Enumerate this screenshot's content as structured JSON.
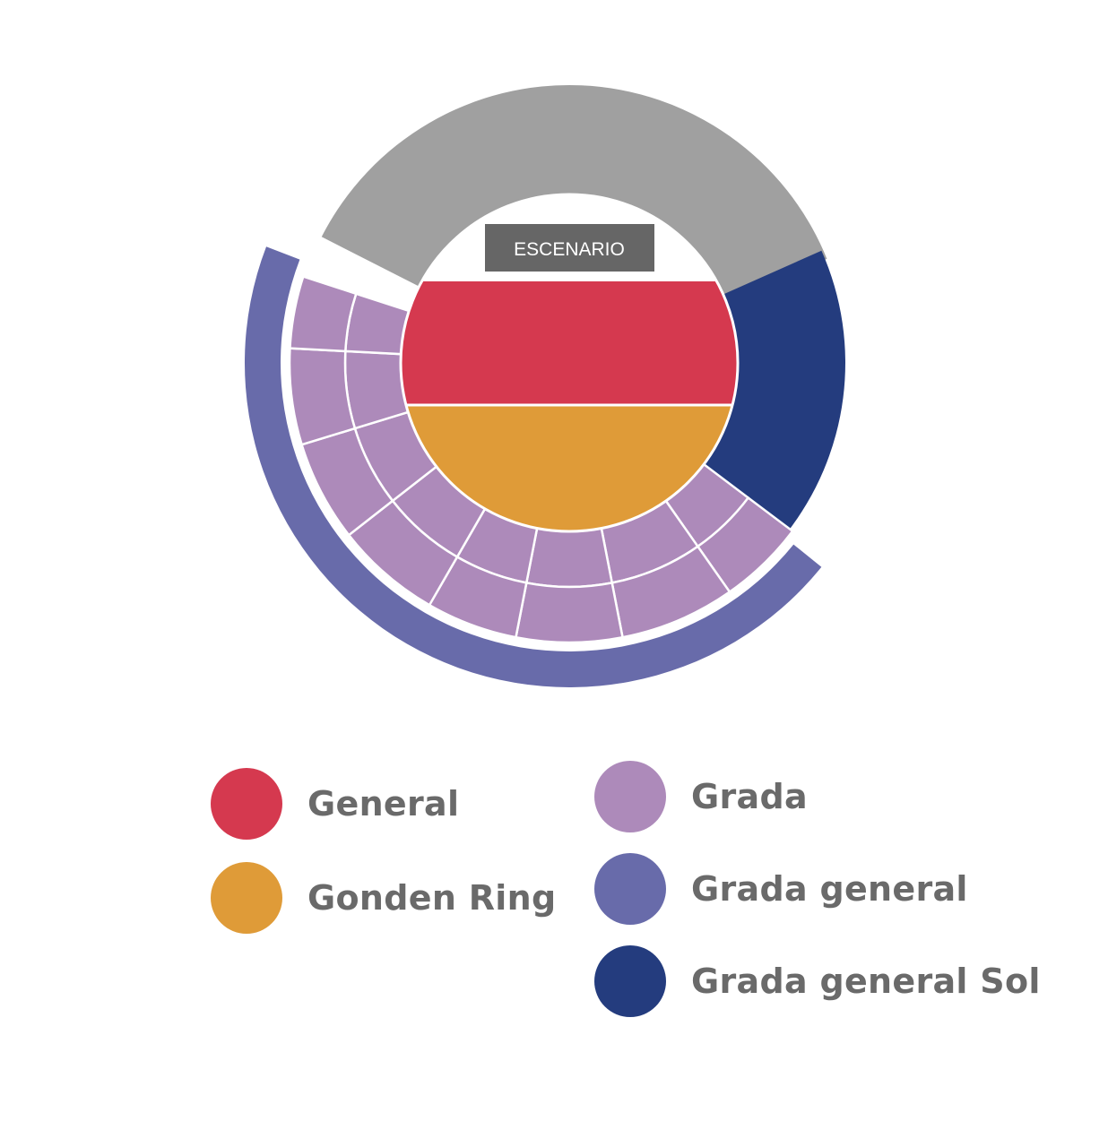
{
  "map": {
    "stage_label": "ESCENARIO",
    "colors": {
      "general": "#d5394f",
      "golden_ring": "#df9b38",
      "grada": "#ad8aba",
      "grada_general": "#686baa",
      "grada_general_sol": "#243c7e",
      "upper_tier": "#a0a0a0",
      "stage": "#666666"
    }
  },
  "legend": {
    "items": [
      {
        "key": "general",
        "label": "General",
        "color": "#d5394f"
      },
      {
        "key": "golden_ring",
        "label": "Gonden Ring",
        "color": "#df9b38"
      },
      {
        "key": "grada",
        "label": "Grada",
        "color": "#ad8aba"
      },
      {
        "key": "grada_general",
        "label": "Grada general",
        "color": "#686baa"
      },
      {
        "key": "grada_general_sol",
        "label": "Grada general Sol",
        "color": "#243c7e"
      }
    ]
  }
}
